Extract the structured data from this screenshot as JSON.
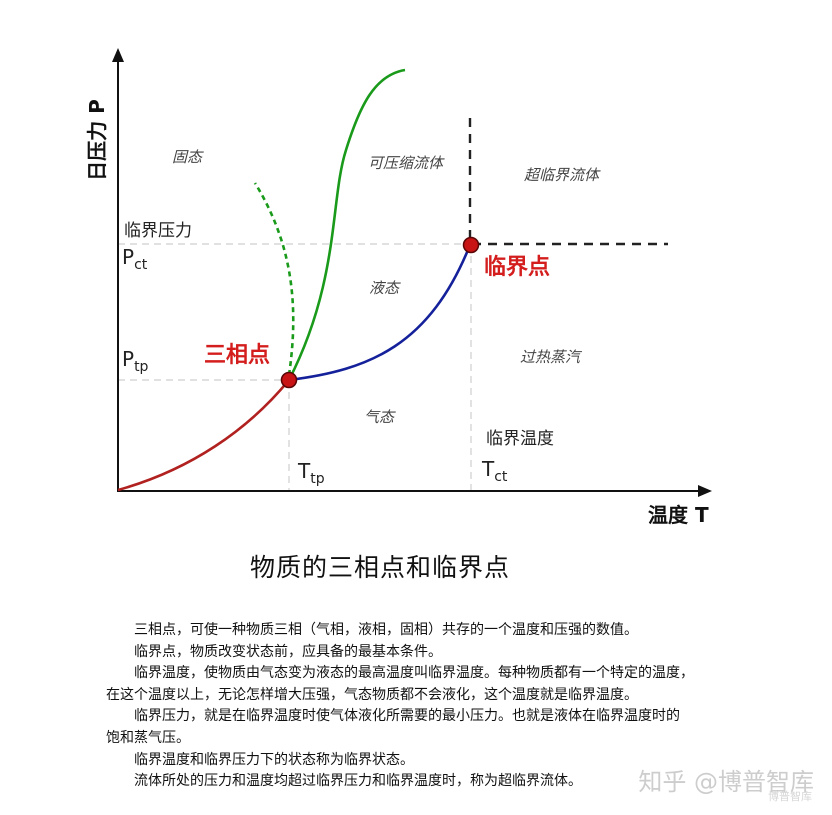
{
  "diagram": {
    "axis_y_label": "日压力 P",
    "axis_x_label": "温度 T",
    "regions": {
      "solid": "固态",
      "compressible_fluid": "可压缩流体",
      "supercritical": "超临界流体",
      "liquid": "液态",
      "superheated": "过热蒸汽",
      "gas": "气态"
    },
    "labels": {
      "critical_pressure": "临界压力",
      "critical_temperature": "临界温度",
      "triple_point": "三相点",
      "critical_point": "临界点"
    },
    "ticks": {
      "p_ct_main": "P",
      "p_ct_sub": "ct",
      "p_tp_main": "P",
      "p_tp_sub": "tp",
      "t_tp_main": "T",
      "t_tp_sub": "tp",
      "t_ct_main": "T",
      "t_ct_sub": "ct"
    },
    "colors": {
      "sublimation_curve": "#b0211f",
      "melting_curve": "#1a9a1a",
      "vaporization_curve": "#14219a",
      "point": "#c81414",
      "label_red": "#d41e1e"
    }
  },
  "caption": {
    "title": "物质的三相点和临界点",
    "lines": [
      "三相点，可使一种物质三相（气相，液相，固相）共存的一个温度和压强的数值。",
      "临界点，物质改变状态前，应具备的最基本条件。",
      "临界温度，使物质由气态变为液态的最高温度叫临界温度。每种物质都有一个特定的温度，",
      "在这个温度以上，无论怎样增大压强，气态物质都不会液化，这个温度就是临界温度。",
      "临界压力，就是在临界温度时使气体液化所需要的最小压力。也就是液体在临界温度时的",
      "饱和蒸气压。",
      "临界温度和临界压力下的状态称为临界状态。",
      "流体所处的压力和温度均超过临界压力和临界温度时，称为超临界流体。"
    ]
  },
  "watermark": {
    "text": "知乎 @博普智库",
    "sub": "博普智库"
  }
}
